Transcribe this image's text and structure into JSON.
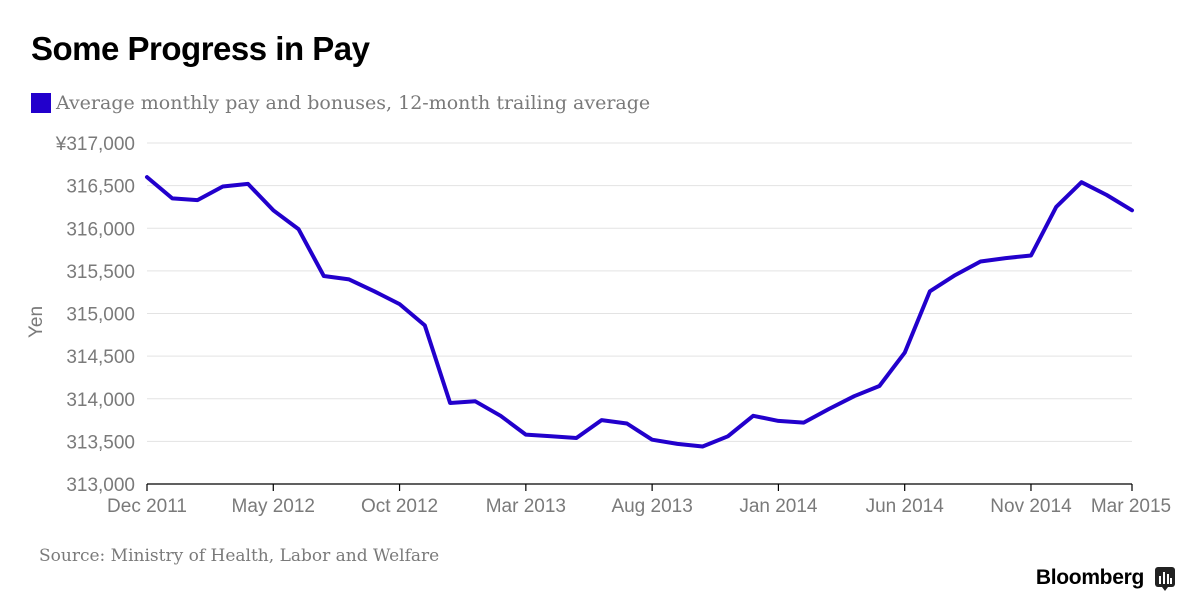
{
  "chart_data": {
    "type": "line",
    "title": "Some Progress in Pay",
    "ylabel": "Yen",
    "xlabel": "",
    "ylim": [
      313000,
      317000
    ],
    "y_ticks": [
      313000,
      313500,
      314000,
      314500,
      315000,
      315500,
      316000,
      316500,
      317000
    ],
    "y_tick_labels": [
      "313,000",
      "313,500",
      "314,000",
      "314,500",
      "315,000",
      "315,500",
      "316,000",
      "316,500",
      "¥317,000"
    ],
    "x_ticks": [
      {
        "index": 0,
        "label": "Dec 2011"
      },
      {
        "index": 5,
        "label": "May 2012"
      },
      {
        "index": 10,
        "label": "Oct 2012"
      },
      {
        "index": 15,
        "label": "Mar 2013"
      },
      {
        "index": 20,
        "label": "Aug 2013"
      },
      {
        "index": 25,
        "label": "Jan 2014"
      },
      {
        "index": 30,
        "label": "Jun 2014"
      },
      {
        "index": 35,
        "label": "Nov 2014"
      },
      {
        "index": 39,
        "label": "Mar 2015"
      }
    ],
    "grid": true,
    "series": [
      {
        "name": "Average monthly pay and bonuses, 12-month trailing average",
        "color": "#2200cc",
        "values": [
          316600,
          316350,
          316330,
          316490,
          316520,
          316210,
          315990,
          315440,
          315400,
          315260,
          315110,
          314860,
          313950,
          313970,
          313800,
          313580,
          313560,
          313540,
          313750,
          313710,
          313520,
          313470,
          313440,
          313560,
          313800,
          313740,
          313720,
          313880,
          314030,
          314150,
          314540,
          315260,
          315450,
          315610,
          315650,
          315680,
          316250,
          316540,
          316390,
          316210
        ]
      }
    ]
  },
  "source": "Source: Ministry of Health, Labor and Welfare",
  "brand": "Bloomberg"
}
